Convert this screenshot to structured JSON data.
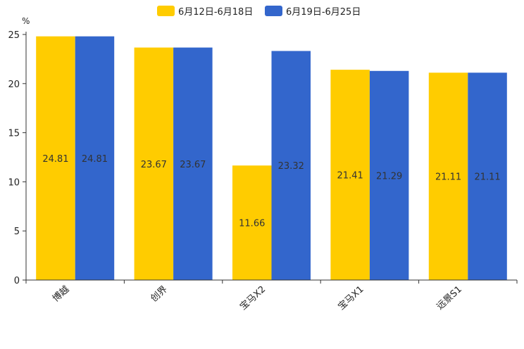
{
  "chart_data": {
    "type": "bar",
    "title": "",
    "xlabel": "",
    "ylabel": "%",
    "ylim": [
      0,
      25
    ],
    "yticks": [
      0,
      5,
      10,
      15,
      20,
      25
    ],
    "grid": false,
    "legend_position": "top-center",
    "categories": [
      "博越",
      "创界",
      "宝马X2",
      "宝马X1",
      "远景S1"
    ],
    "series": [
      {
        "name": "6月12日-6月18日",
        "color": "#FFCC00",
        "values": [
          24.81,
          23.67,
          11.66,
          21.41,
          21.11
        ],
        "labels": [
          "24.81",
          "23.67",
          "11.66",
          "21.41",
          "21.11"
        ]
      },
      {
        "name": "6月19日-6月25日",
        "color": "#3366CC",
        "values": [
          24.81,
          23.67,
          23.32,
          21.29,
          21.11
        ],
        "labels": [
          "24.81",
          "23.67",
          "23.32",
          "21.29",
          "21.11"
        ]
      }
    ]
  }
}
